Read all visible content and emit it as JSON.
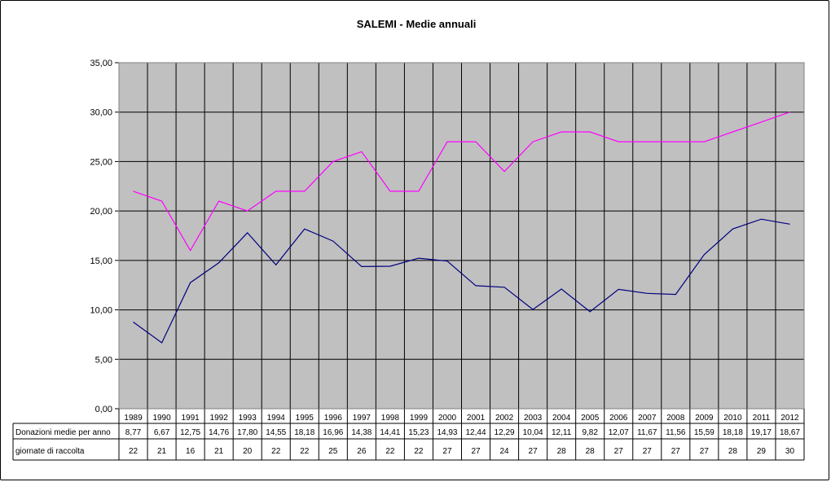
{
  "chart_data": {
    "type": "line",
    "title": "SALEMI - Medie annuali",
    "categories": [
      "1989",
      "1990",
      "1991",
      "1992",
      "1993",
      "1994",
      "1995",
      "1996",
      "1997",
      "1998",
      "1999",
      "2000",
      "2001",
      "2002",
      "2003",
      "2004",
      "2005",
      "2006",
      "2007",
      "2008",
      "2009",
      "2010",
      "2011",
      "2012"
    ],
    "y_ticks": [
      "0,00",
      "5,00",
      "10,00",
      "15,00",
      "20,00",
      "25,00",
      "30,00",
      "35,00"
    ],
    "ylim": [
      0,
      35
    ],
    "grid": true,
    "series": [
      {
        "name": "Donazioni medie per anno",
        "color": "#000080",
        "values": [
          8.77,
          6.67,
          12.75,
          14.76,
          17.8,
          14.55,
          18.18,
          16.96,
          14.38,
          14.41,
          15.23,
          14.93,
          12.44,
          12.29,
          10.04,
          12.11,
          9.82,
          12.07,
          11.67,
          11.56,
          15.59,
          18.18,
          19.17,
          18.67
        ],
        "labels": [
          "8,77",
          "6,67",
          "12,75",
          "14,76",
          "17,80",
          "14,55",
          "18,18",
          "16,96",
          "14,38",
          "14,41",
          "15,23",
          "14,93",
          "12,44",
          "12,29",
          "10,04",
          "12,11",
          "9,82",
          "12,07",
          "11,67",
          "11,56",
          "15,59",
          "18,18",
          "19,17",
          "18,67"
        ]
      },
      {
        "name": "giornate di raccolta",
        "color": "#ff00ff",
        "values": [
          22,
          21,
          16,
          21,
          20,
          22,
          22,
          25,
          26,
          22,
          22,
          27,
          27,
          24,
          27,
          28,
          28,
          27,
          27,
          27,
          27,
          28,
          29,
          30
        ],
        "labels": [
          "22",
          "21",
          "16",
          "21",
          "20",
          "22",
          "22",
          "25",
          "26",
          "22",
          "22",
          "27",
          "27",
          "24",
          "27",
          "28",
          "28",
          "27",
          "27",
          "27",
          "27",
          "28",
          "29",
          "30"
        ]
      }
    ]
  }
}
